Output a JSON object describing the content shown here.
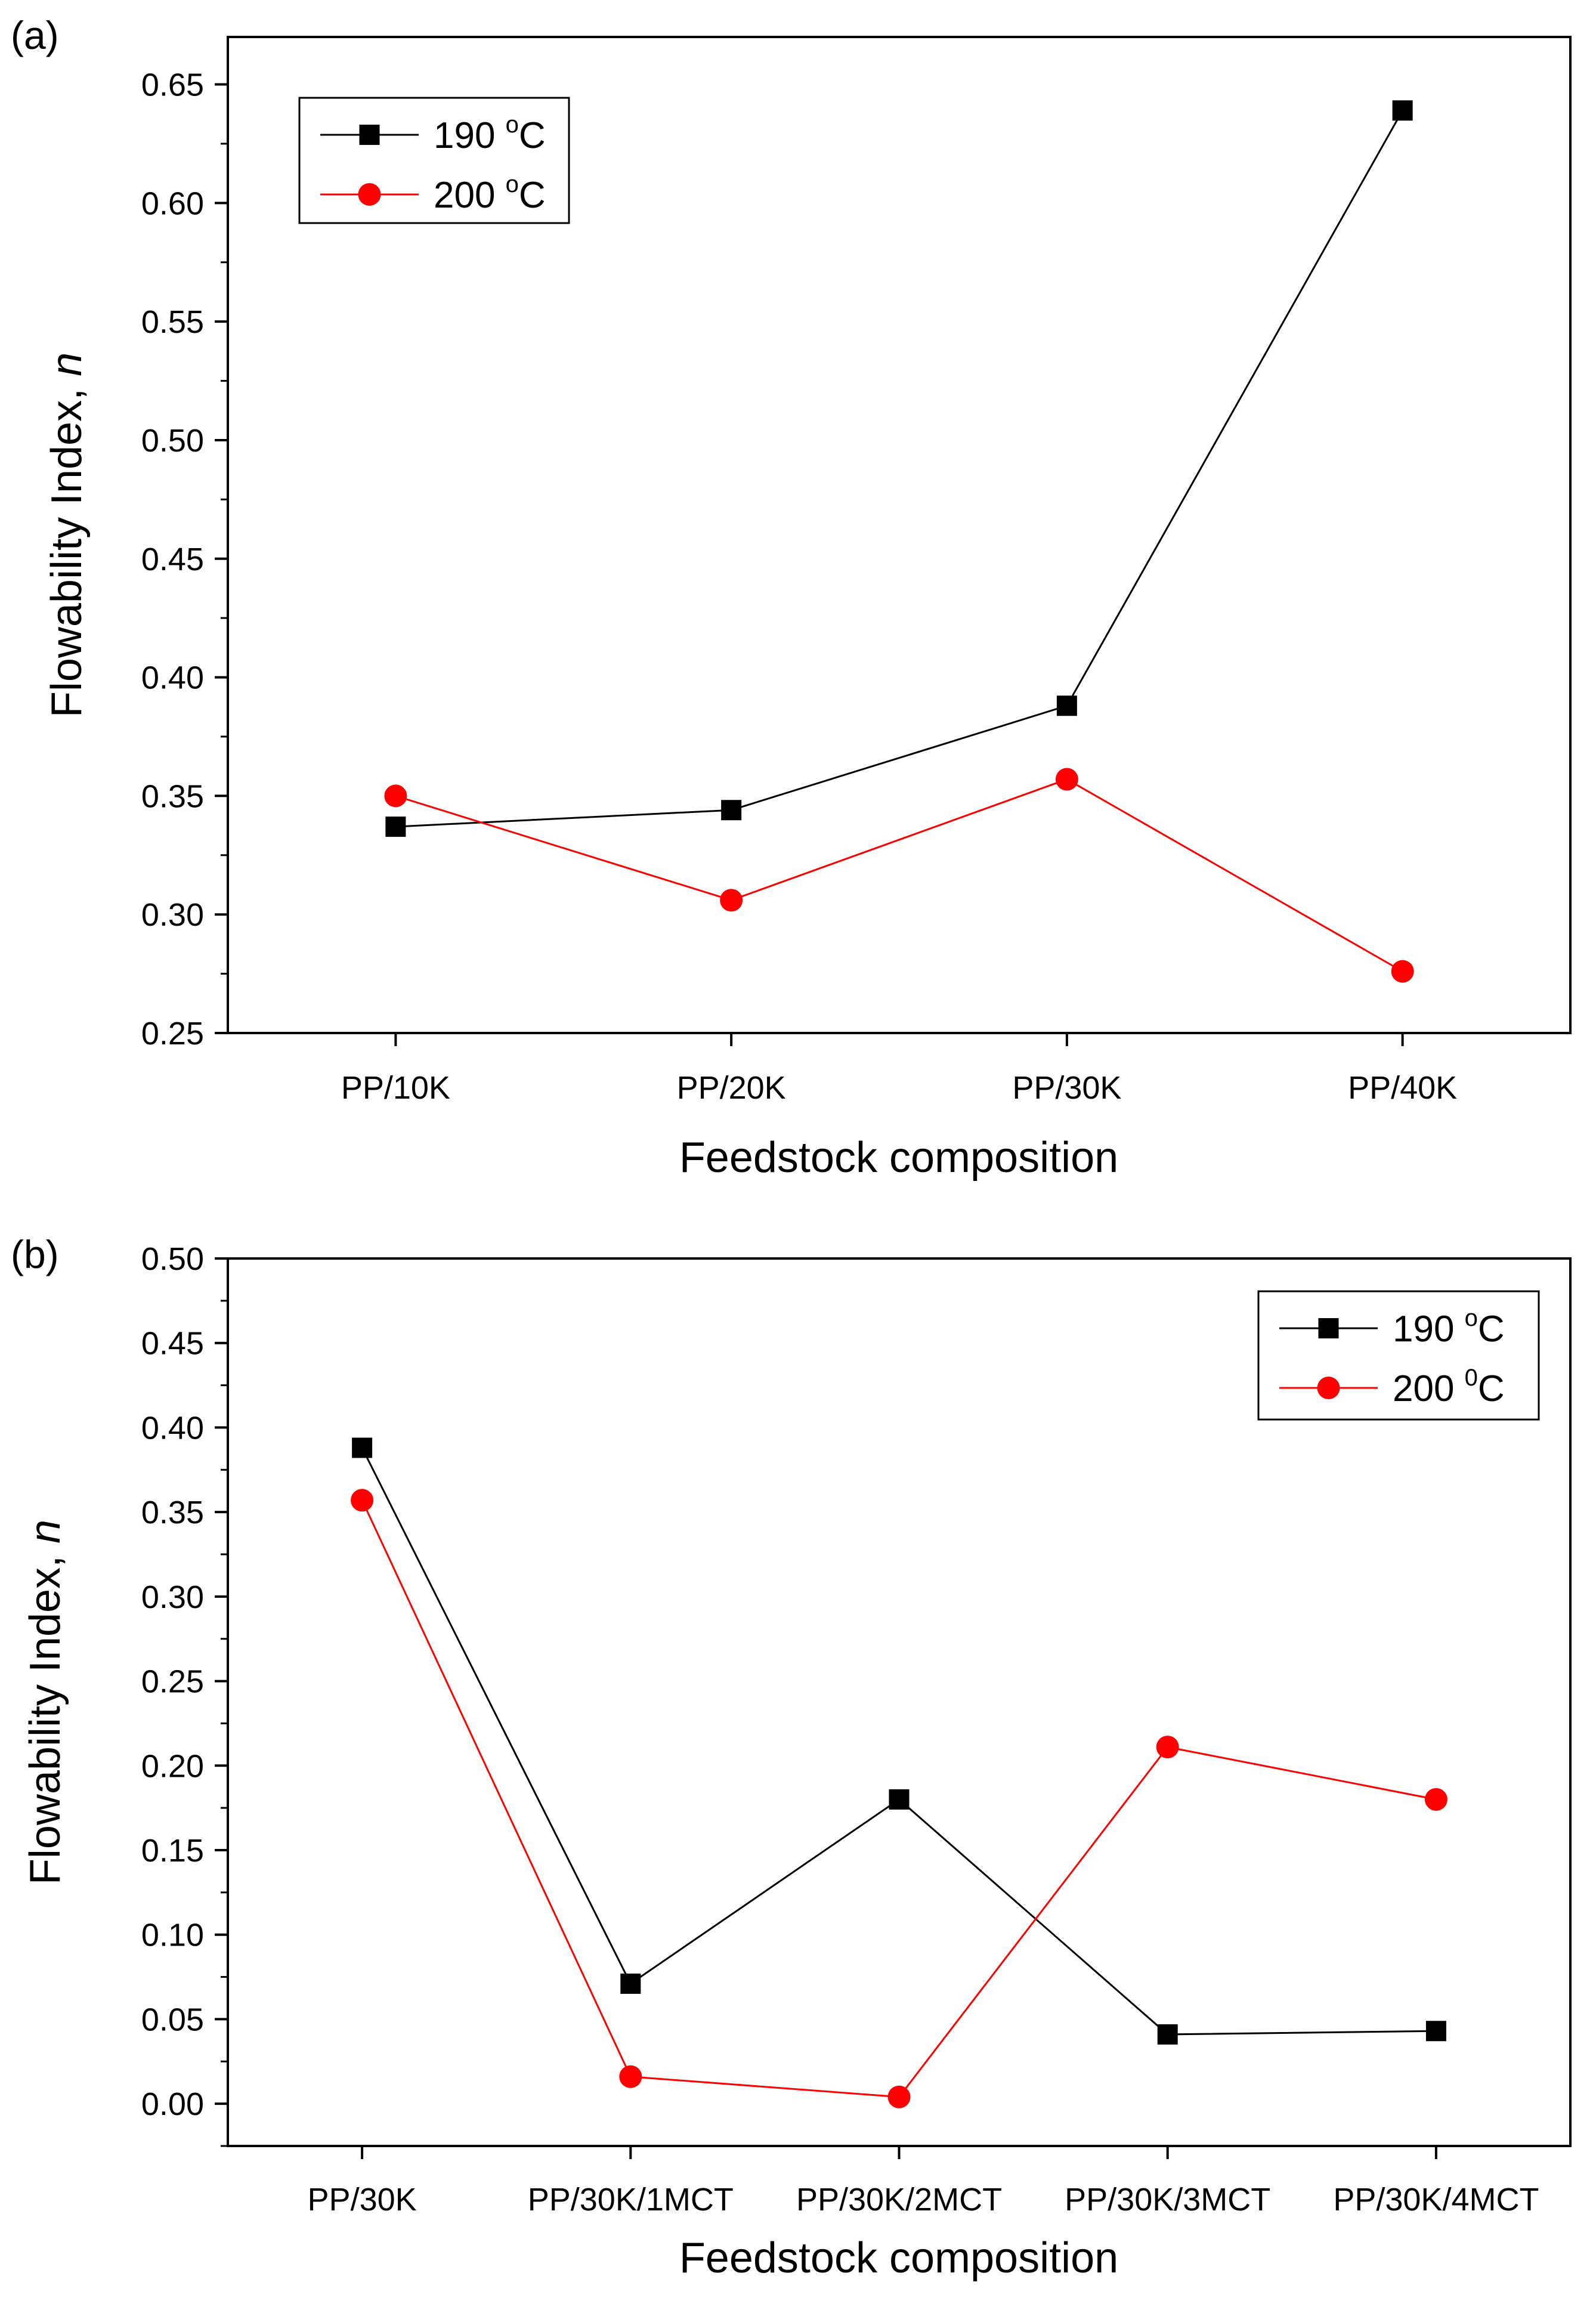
{
  "chart_data": [
    {
      "panel_label": "(a)",
      "type": "line",
      "categories": [
        "PP/10K",
        "PP/20K",
        "PP/30K",
        "PP/40K"
      ],
      "series": [
        {
          "name": "190 °C",
          "legend_text": "190",
          "legend_sup": "o",
          "legend_unit": "C",
          "color": "#000000",
          "marker": "square",
          "values": [
            0.337,
            0.344,
            0.388,
            0.639
          ]
        },
        {
          "name": "200 °C",
          "legend_text": "200",
          "legend_sup": "o",
          "legend_unit": "C",
          "color": "#ff0000",
          "marker": "circle",
          "values": [
            0.35,
            0.306,
            0.357,
            0.276
          ]
        }
      ],
      "xlabel": "Feedstock composition",
      "ylabel": "Flowability Index, ",
      "ylabel_italic": "n",
      "ylim": [
        0.25,
        0.67
      ],
      "yticks": [
        "0.25",
        "0.30",
        "0.35",
        "0.40",
        "0.45",
        "0.50",
        "0.55",
        "0.60",
        "0.65"
      ],
      "legend_position": "top-left"
    },
    {
      "panel_label": "(b)",
      "type": "line",
      "categories": [
        "PP/30K",
        "PP/30K/1MCT",
        "PP/30K/2MCT",
        "PP/30K/3MCT",
        "PP/30K/4MCT"
      ],
      "series": [
        {
          "name": "190 °C",
          "legend_text": "190",
          "legend_sup": "o",
          "legend_unit": "C",
          "color": "#000000",
          "marker": "square",
          "values": [
            0.388,
            0.071,
            0.18,
            0.041,
            0.043
          ]
        },
        {
          "name": "200 0C",
          "legend_text": "200",
          "legend_sup": "0",
          "legend_unit": "C",
          "color": "#ff0000",
          "marker": "circle",
          "values": [
            0.357,
            0.016,
            0.004,
            0.211,
            0.18
          ]
        }
      ],
      "xlabel": "Feedstock composition",
      "ylabel": "Flowability Index, ",
      "ylabel_italic": "n",
      "ylim": [
        -0.025,
        0.5
      ],
      "yticks": [
        "0.00",
        "0.05",
        "0.10",
        "0.15",
        "0.20",
        "0.25",
        "0.30",
        "0.35",
        "0.40",
        "0.45",
        "0.50"
      ],
      "legend_position": "top-right"
    }
  ]
}
